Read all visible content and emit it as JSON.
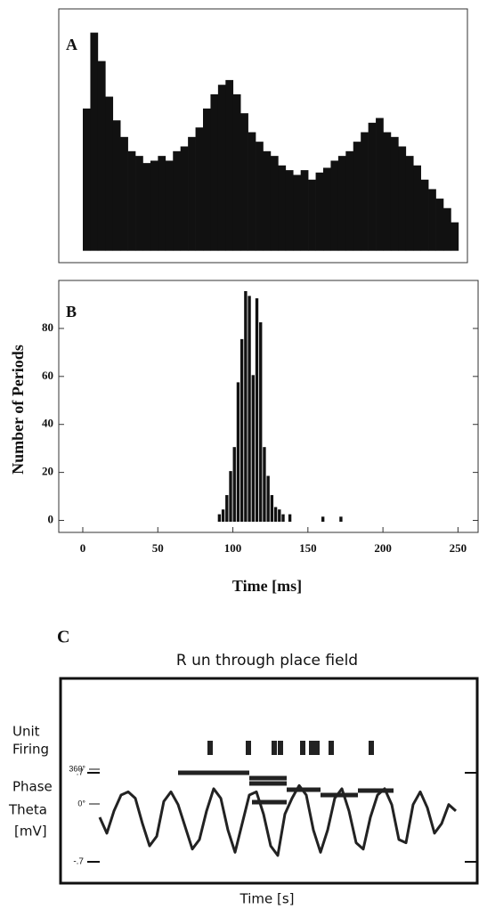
{
  "chart_data": [
    {
      "type": "histogram",
      "label": "A",
      "color": "#111",
      "bins": [
        0,
        5,
        10,
        15,
        20,
        25,
        30,
        35,
        40,
        45,
        50,
        55,
        60,
        65,
        70,
        75,
        80,
        85,
        90,
        95,
        100,
        105,
        110,
        115,
        120,
        125,
        130,
        135,
        140,
        145,
        150,
        155,
        160,
        165,
        170,
        175,
        180,
        185,
        190,
        195,
        200,
        205,
        210,
        215,
        220,
        225,
        230,
        235,
        240,
        245,
        250
      ],
      "values": [
        60,
        92,
        80,
        65,
        55,
        48,
        42,
        40,
        37,
        38,
        40,
        38,
        42,
        44,
        48,
        52,
        60,
        66,
        70,
        72,
        66,
        58,
        50,
        46,
        42,
        40,
        36,
        34,
        32,
        34,
        30,
        33,
        35,
        38,
        40,
        42,
        46,
        50,
        54,
        56,
        50,
        48,
        44,
        40,
        36,
        30,
        26,
        22,
        18,
        12
      ],
      "xlim": [
        -16,
        256
      ],
      "ylim": [
        -5,
        102
      ]
    },
    {
      "type": "bar",
      "label": "B",
      "color": "#111",
      "x": [
        91,
        93.5,
        96,
        98.5,
        101,
        103.5,
        106,
        108.5,
        111,
        113.5,
        116,
        118.5,
        121,
        123.5,
        126,
        128.5,
        131,
        133.5,
        138,
        160,
        172
      ],
      "values": [
        2,
        4,
        10,
        20,
        30,
        57,
        75,
        95,
        93,
        60,
        92,
        82,
        30,
        18,
        10,
        5,
        4,
        2,
        2,
        1,
        1
      ],
      "xlim": [
        -16,
        264
      ],
      "ylim": [
        -5,
        100
      ],
      "xticks": [
        0,
        50,
        100,
        150,
        200,
        250
      ],
      "yticks": [
        0,
        20,
        40,
        60,
        80
      ],
      "x_label": "Time [ms]",
      "y_label": "Number of Periods"
    },
    {
      "type": "trace",
      "label": "C",
      "title": "R un through place field",
      "color": "#222",
      "row_labels": [
        "Unit",
        "Firing",
        "Phase",
        "Theta",
        "[mV]"
      ],
      "x_label": "Time [s]",
      "xlim": [
        0,
        100
      ],
      "spikes": [
        31,
        41.75,
        49,
        50.75,
        57,
        59.5,
        61,
        65,
        76.25
      ],
      "phase": {
        "start": [
          22,
          42,
          42,
          52.5,
          62,
          72.5,
          42.75
        ],
        "end": [
          42,
          52.5,
          52.5,
          62,
          72.5,
          82.5,
          52.5
        ],
        "values": [
          323,
          268,
          212,
          148,
          92,
          138,
          18
        ]
      },
      "phase_ylim": [
        0,
        360
      ],
      "phase_yticks": [
        {
          "value": 360,
          "label": "360°"
        },
        {
          "value": 0,
          "label": "0°"
        }
      ],
      "theta": {
        "x": [
          0,
          2,
          4,
          6,
          8,
          10,
          12,
          14,
          16,
          18,
          20,
          22,
          24,
          26,
          28,
          30,
          32,
          34,
          36,
          38,
          40,
          42,
          44,
          46,
          48,
          50,
          52,
          54,
          56,
          58,
          60,
          62,
          64,
          66,
          68,
          70,
          72,
          74,
          76,
          78,
          80,
          82,
          84,
          86,
          88,
          90,
          92,
          94,
          96,
          98,
          100
        ],
        "values": [
          0.0,
          -0.25,
          0.1,
          0.35,
          0.4,
          0.3,
          -0.1,
          -0.45,
          -0.3,
          0.25,
          0.4,
          0.2,
          -0.15,
          -0.5,
          -0.35,
          0.1,
          0.45,
          0.3,
          -0.2,
          -0.55,
          -0.1,
          0.35,
          0.4,
          0.05,
          -0.45,
          -0.6,
          0.05,
          0.3,
          0.5,
          0.35,
          -0.2,
          -0.55,
          -0.2,
          0.3,
          0.45,
          0.1,
          -0.4,
          -0.5,
          0.0,
          0.35,
          0.45,
          0.2,
          -0.35,
          -0.4,
          0.2,
          0.4,
          0.15,
          -0.25,
          -0.1,
          0.2,
          0.1
        ]
      },
      "ylim": [
        -0.7,
        0.7
      ],
      "yticks": [
        {
          "value": 0.7,
          "label": ".7"
        },
        {
          "value": -0.7,
          "label": "-.7"
        }
      ]
    }
  ]
}
